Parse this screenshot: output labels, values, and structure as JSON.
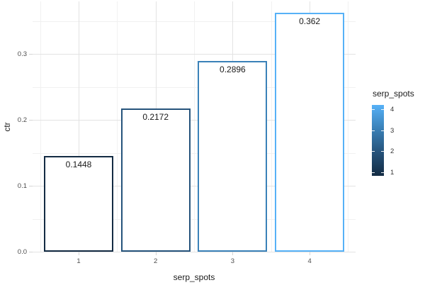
{
  "chart_data": {
    "type": "bar",
    "title": "",
    "xlabel": "serp_spots",
    "ylabel": "ctr",
    "categories": [
      "1",
      "2",
      "3",
      "4"
    ],
    "values": [
      0.1448,
      0.2172,
      0.2896,
      0.362
    ],
    "bar_labels": [
      "0.1448",
      "0.2172",
      "0.2896",
      "0.362"
    ],
    "bar_fill": "#FFFFFF",
    "bar_border_colors": [
      "#132B43",
      "#26547C",
      "#3A81B8",
      "#56B1F7"
    ],
    "ytick_labels": [
      "0.0",
      "0.1",
      "0.2",
      "0.3"
    ],
    "ytick_values": [
      0,
      0.1,
      0.2,
      0.3
    ],
    "yminor_values": [
      0.05,
      0.15,
      0.25,
      0.35
    ],
    "ylim": [
      0,
      0.38
    ],
    "grid": true,
    "legend": {
      "title": "serp_spots",
      "position": "right",
      "type": "colorbar",
      "tick_labels": [
        "4",
        "3",
        "2",
        "1"
      ],
      "tick_values": [
        4,
        3,
        2,
        1
      ],
      "gradient_stops": [
        "#56B1F7",
        "#3A81B8",
        "#26547C",
        "#132B43"
      ]
    },
    "colors": {
      "background": "#FFFFFF",
      "grid_major": "#E3E3E3",
      "grid_minor": "#F1F1F1",
      "axis_tick": "#D5D5D5",
      "tick_label_text": "#4D4D4D",
      "title_text": "#1A1A1A"
    }
  }
}
